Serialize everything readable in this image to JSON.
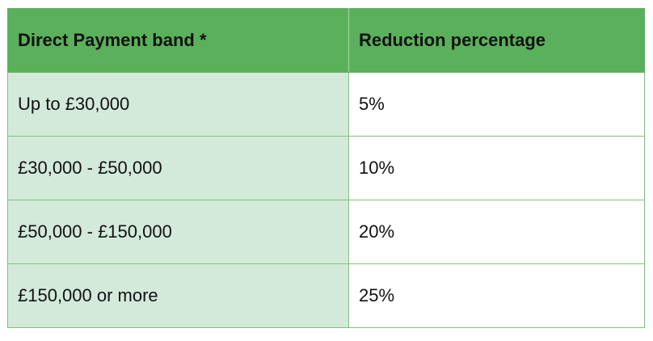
{
  "table": {
    "headers": [
      "Direct Payment band *",
      "Reduction percentage"
    ],
    "rows": [
      {
        "band": "Up to £30,000",
        "reduction": "5%"
      },
      {
        "band": "£30,000 - £50,000",
        "reduction": "10%"
      },
      {
        "band": "£50,000 - £150,000",
        "reduction": "20%"
      },
      {
        "band": "£150,000 or more",
        "reduction": "25%"
      }
    ]
  },
  "colors": {
    "header_bg": "#5bb15b",
    "band_bg": "#d3eadb",
    "border": "#7cc27c"
  }
}
